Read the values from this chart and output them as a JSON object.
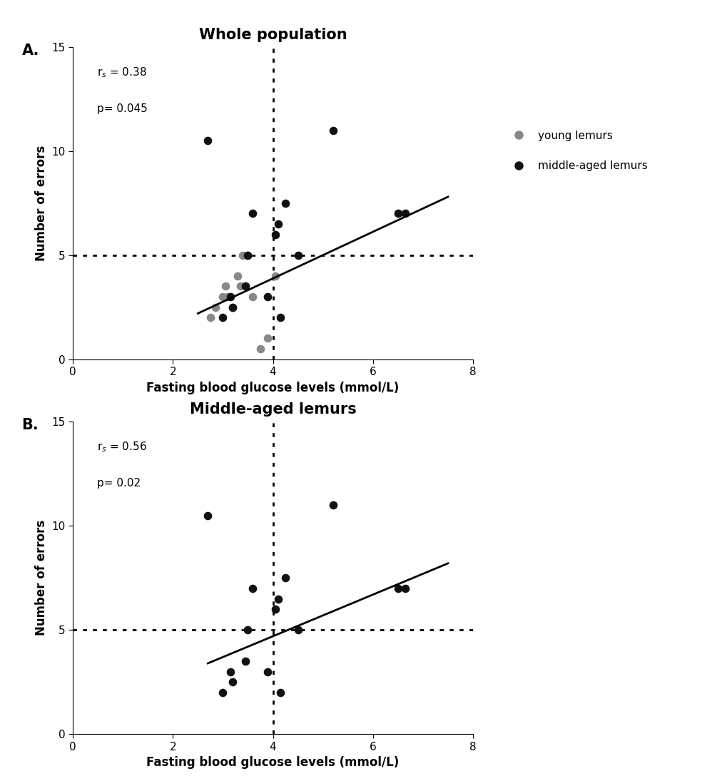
{
  "panel_A_title": "Whole population",
  "panel_B_title": "Middle-aged lemurs",
  "xlabel": "Fasting blood glucose levels (mmol/L)",
  "ylabel": "Number of errors",
  "xlim": [
    0,
    8
  ],
  "ylim": [
    0,
    15
  ],
  "xticks": [
    0,
    2,
    4,
    6,
    8
  ],
  "yticks": [
    0,
    5,
    10,
    15
  ],
  "hline": 5,
  "vline": 4.0,
  "panel_A_rs": "r$_s$ = 0.38",
  "panel_A_p": "p= 0.045",
  "panel_B_rs": "r$_s$ = 0.56",
  "panel_B_p": "p= 0.02",
  "young_color": "#888888",
  "old_color": "#111111",
  "legend_young": "young lemurs",
  "legend_old": "middle-aged lemurs",
  "young_x": [
    2.75,
    2.85,
    3.0,
    3.05,
    3.1,
    3.2,
    3.3,
    3.35,
    3.4,
    3.5,
    3.6,
    3.75,
    3.9,
    4.05
  ],
  "young_y": [
    2.0,
    2.5,
    3.0,
    3.5,
    3.0,
    2.5,
    4.0,
    3.5,
    5.0,
    5.0,
    3.0,
    0.5,
    1.0,
    4.0
  ],
  "old_A_x": [
    2.7,
    3.0,
    3.15,
    3.2,
    3.45,
    3.5,
    3.6,
    3.9,
    4.05,
    4.1,
    4.15,
    4.25,
    4.5,
    5.2,
    6.5,
    6.65
  ],
  "old_A_y": [
    10.5,
    2.0,
    3.0,
    2.5,
    3.5,
    5.0,
    7.0,
    3.0,
    6.0,
    6.5,
    2.0,
    7.5,
    5.0,
    11.0,
    7.0,
    7.0
  ],
  "old_B_x": [
    2.7,
    3.0,
    3.15,
    3.2,
    3.45,
    3.5,
    3.6,
    3.9,
    4.05,
    4.1,
    4.15,
    4.25,
    4.5,
    5.2,
    6.5,
    6.65
  ],
  "old_B_y": [
    10.5,
    2.0,
    3.0,
    2.5,
    3.5,
    5.0,
    7.0,
    3.0,
    6.0,
    6.5,
    2.0,
    7.5,
    5.0,
    11.0,
    7.0,
    7.0
  ],
  "line_A_x0": 2.5,
  "line_A_x1": 7.5,
  "line_A_y0": 2.2,
  "line_A_y1": 7.8,
  "line_B_x0": 2.7,
  "line_B_x1": 7.5,
  "line_B_y0": 3.4,
  "line_B_y1": 8.2,
  "marker_size": 70,
  "panel_label_fontsize": 15,
  "title_fontsize": 15,
  "axis_fontsize": 12,
  "tick_fontsize": 11,
  "annotation_fontsize": 11
}
